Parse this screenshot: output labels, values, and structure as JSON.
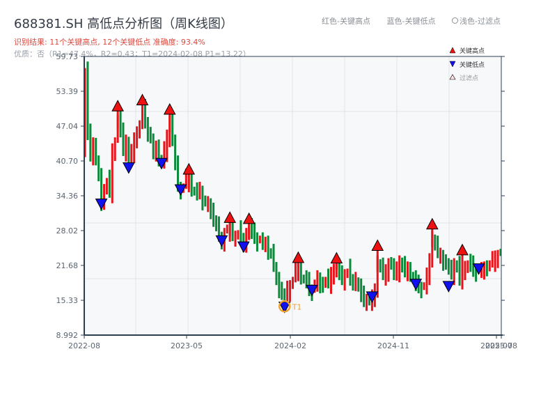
{
  "header": {
    "title": "688381.SH 高低点分析图（周K线图）",
    "result": "识别结果: 11个关键高点, 12个关键低点  准确度: 93.4%",
    "quality": "优质：否（R1=47.4%，R2=0.43；T1=2024-02-08 P1=13.22）",
    "legend_red": "红色-关键高点",
    "legend_blue": "蓝色-关键低点",
    "legend_light": "浅色-过滤点"
  },
  "colors": {
    "up": "#e8141c",
    "down": "#0a8a3a",
    "high_marker": "#ee1111",
    "low_marker": "#1111ee",
    "t1_ring": "#f0a030",
    "axis": "#2c3e50",
    "grid": "#e2e5ea",
    "plot_bg": "#f7f8fa"
  },
  "chart_data": {
    "type": "candlestick",
    "title": "688381.SH 高低点分析图（周K线图）",
    "ylim": [
      8.992,
      59.73
    ],
    "y_ticks": [
      8.992,
      15.33,
      21.68,
      28.02,
      34.36,
      40.7,
      47.04,
      53.39,
      59.73
    ],
    "y_tick_labels": [
      "8.992",
      "15.33",
      "21.68",
      "28.02",
      "34.36",
      "40.70",
      "47.04",
      "53.39",
      "59.73"
    ],
    "x_tick_labels": [
      "2022-08",
      "2023-05",
      "2024-02",
      "2024-11",
      "2025-07",
      "2025-08"
    ],
    "legend": [
      "关键高点",
      "关键低点",
      "过滤点"
    ],
    "key_highs": [
      {
        "idx": 12,
        "price": 49.8
      },
      {
        "idx": 21,
        "price": 50.9
      },
      {
        "idx": 31,
        "price": 49.2
      },
      {
        "idx": 38,
        "price": 38.3
      },
      {
        "idx": 53,
        "price": 29.5
      },
      {
        "idx": 60,
        "price": 29.3
      },
      {
        "idx": 78,
        "price": 22.2
      },
      {
        "idx": 92,
        "price": 22.1
      },
      {
        "idx": 107,
        "price": 24.4
      },
      {
        "idx": 127,
        "price": 28.3
      },
      {
        "idx": 138,
        "price": 23.6
      }
    ],
    "key_lows": [
      {
        "idx": 6,
        "price": 32.0
      },
      {
        "idx": 16,
        "price": 38.6
      },
      {
        "idx": 28,
        "price": 39.4
      },
      {
        "idx": 35,
        "price": 34.6
      },
      {
        "idx": 50,
        "price": 25.3
      },
      {
        "idx": 58,
        "price": 24.2
      },
      {
        "idx": 73,
        "price": 13.22,
        "label": "T1"
      },
      {
        "idx": 83,
        "price": 16.3
      },
      {
        "idx": 105,
        "price": 15.1
      },
      {
        "idx": 121,
        "price": 17.4
      },
      {
        "idx": 133,
        "price": 17.0
      },
      {
        "idx": 144,
        "price": 20.2
      }
    ],
    "closes": [
      57.0,
      45.5,
      42.0,
      44.0,
      40.5,
      38.0,
      33.0,
      35.5,
      37.0,
      35.0,
      42.5,
      44.0,
      48.5,
      46.0,
      43.0,
      44.5,
      40.0,
      42.0,
      44.5,
      46.0,
      47.5,
      50.0,
      48.0,
      46.0,
      44.5,
      42.0,
      43.0,
      41.5,
      40.0,
      42.5,
      45.0,
      48.0,
      44.0,
      40.0,
      36.5,
      35.5,
      36.0,
      37.5,
      37.0,
      36.0,
      35.0,
      34.5,
      35.5,
      33.5,
      33.0,
      32.5,
      31.5,
      30.5,
      28.5,
      27.0,
      26.0,
      27.5,
      28.5,
      28.0,
      27.5,
      27.0,
      27.5,
      26.5,
      25.5,
      27.5,
      28.5,
      27.5,
      27.0,
      26.0,
      26.5,
      25.5,
      25.5,
      24.5,
      23.5,
      21.5,
      19.5,
      17.5,
      16.0,
      15.5,
      17.5,
      18.0,
      19.0,
      20.5,
      21.0,
      20.0,
      19.0,
      18.5,
      17.5,
      17.0,
      18.5,
      19.0,
      18.0,
      18.5,
      19.0,
      18.5,
      20.0,
      21.0,
      21.5,
      20.0,
      19.5,
      20.0,
      20.5,
      19.0,
      18.5,
      19.5,
      17.5,
      16.0,
      15.5,
      15.5,
      15.0,
      15.5,
      17.0,
      22.5,
      21.0,
      20.0,
      20.5,
      22.0,
      21.5,
      20.0,
      21.0,
      22.5,
      21.0,
      20.5,
      21.0,
      20.5,
      19.0,
      18.0,
      18.0,
      17.5,
      18.0,
      19.5,
      22.5,
      27.0,
      25.0,
      24.0,
      23.5,
      22.5,
      21.5,
      21.0,
      20.5,
      22.0,
      21.0,
      19.0,
      20.5,
      21.5,
      22.0,
      21.5,
      21.0,
      20.5,
      21.0,
      20.5,
      21.0,
      21.5,
      22.0,
      22.5,
      23.0,
      23.5,
      24.0
    ],
    "x_range_note": "weekly candles from 2022-08 to 2025-08"
  }
}
